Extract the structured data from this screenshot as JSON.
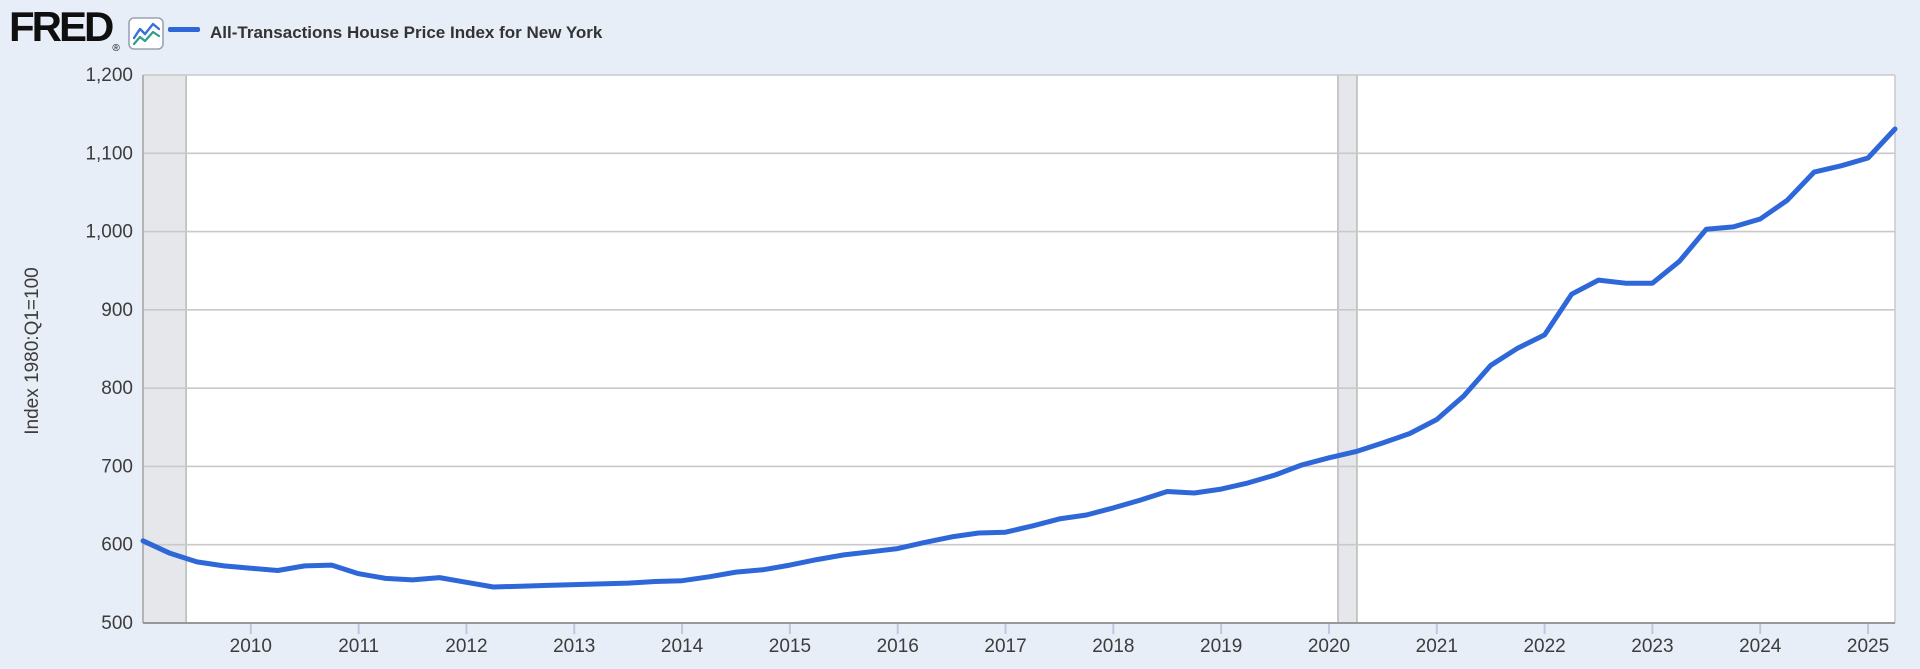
{
  "header": {
    "logo_text": "FRED",
    "logo_registered": "®",
    "series_title": "All-Transactions House Price Index for New York"
  },
  "colors": {
    "background": "#e8eef7",
    "plot_background": "#ffffff",
    "line": "#2e68d8",
    "gridline": "#c9c9c9",
    "axis_line": "#989898",
    "plot_border_light": "#cccccc",
    "plot_border_left": "#a9a9a9",
    "tick_mark": "#bcc8de",
    "label_text": "#3c3c3c",
    "title_text": "#333333",
    "recession_fill": "#e6e7ea",
    "recession_edge": "#ababab",
    "logo_black": "#0f0f0f",
    "icon_blue": "#3b6fd9",
    "icon_teal": "#2e9c8f",
    "icon_border": "#9aa4b5"
  },
  "chart_data": {
    "type": "line",
    "title": "All-Transactions House Price Index for New York",
    "xlabel": "",
    "ylabel": "Index 1980:Q1=100",
    "frequency": "quarterly",
    "xlim": [
      2009.0,
      2025.25
    ],
    "ylim": [
      500,
      1200
    ],
    "grid": true,
    "legend_position": "top-left",
    "y_ticks": [
      500,
      600,
      700,
      800,
      900,
      1000,
      1100,
      1200
    ],
    "y_tick_labels": [
      "500",
      "600",
      "700",
      "800",
      "900",
      "1,000",
      "1,100",
      "1,200"
    ],
    "x_ticks": [
      2010,
      2011,
      2012,
      2013,
      2014,
      2015,
      2016,
      2017,
      2018,
      2019,
      2020,
      2021,
      2022,
      2023,
      2024,
      2025
    ],
    "x_tick_labels": [
      "2010",
      "2011",
      "2012",
      "2013",
      "2014",
      "2015",
      "2016",
      "2017",
      "2018",
      "2019",
      "2020",
      "2021",
      "2022",
      "2023",
      "2024",
      "2025"
    ],
    "recession_bands": [
      {
        "start": 2009.0,
        "end": 2009.4
      },
      {
        "start": 2020.083,
        "end": 2020.26
      }
    ],
    "series": [
      {
        "name": "All-Transactions House Price Index for New York",
        "x": [
          2009.0,
          2009.25,
          2009.5,
          2009.75,
          2010.0,
          2010.25,
          2010.5,
          2010.75,
          2011.0,
          2011.25,
          2011.5,
          2011.75,
          2012.0,
          2012.25,
          2012.5,
          2012.75,
          2013.0,
          2013.25,
          2013.5,
          2013.75,
          2014.0,
          2014.25,
          2014.5,
          2014.75,
          2015.0,
          2015.25,
          2015.5,
          2015.75,
          2016.0,
          2016.25,
          2016.5,
          2016.75,
          2017.0,
          2017.25,
          2017.5,
          2017.75,
          2018.0,
          2018.25,
          2018.5,
          2018.75,
          2019.0,
          2019.25,
          2019.5,
          2019.75,
          2020.0,
          2020.25,
          2020.5,
          2020.75,
          2021.0,
          2021.25,
          2021.5,
          2021.75,
          2022.0,
          2022.25,
          2022.5,
          2022.75,
          2023.0,
          2023.25,
          2023.5,
          2023.75,
          2024.0,
          2024.25,
          2024.5,
          2024.75,
          2025.0,
          2025.25
        ],
        "values": [
          605,
          589,
          578,
          573,
          570,
          567,
          573,
          574,
          563,
          557,
          555,
          558,
          552,
          546,
          547,
          548,
          549,
          550,
          551,
          553,
          554,
          559,
          565,
          568,
          574,
          581,
          587,
          591,
          595,
          603,
          610,
          615,
          616,
          624,
          633,
          638,
          647,
          657,
          668,
          666,
          671,
          679,
          689,
          702,
          711,
          719,
          730,
          742,
          760,
          790,
          829,
          851,
          868,
          920,
          938,
          934,
          934,
          962,
          1003,
          1006,
          1016,
          1040,
          1076,
          1084,
          1094,
          1131
        ]
      }
    ]
  }
}
